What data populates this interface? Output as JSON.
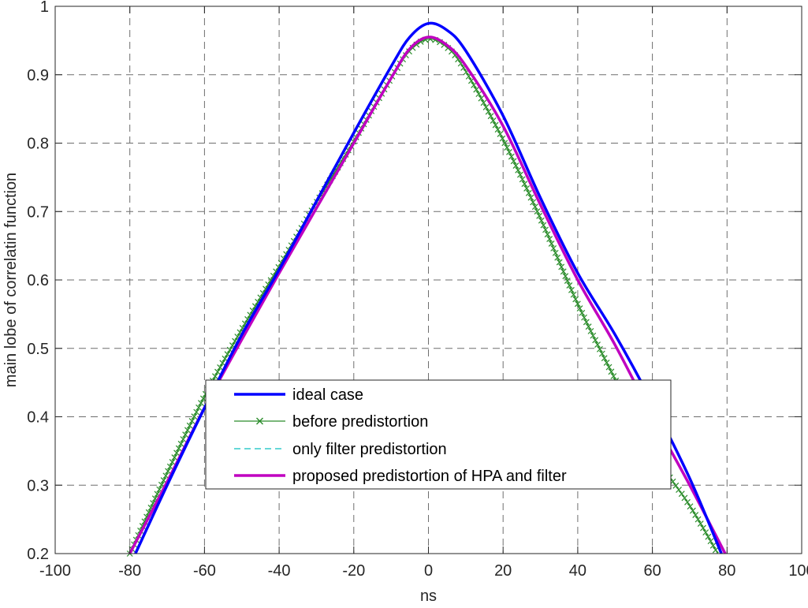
{
  "chart_data": {
    "type": "line",
    "title": "",
    "xlabel": "ns",
    "ylabel": "main lobe of correlatin function",
    "xlim": [
      -100,
      100
    ],
    "ylim": [
      0.2,
      1
    ],
    "xticks": [
      -100,
      -80,
      -60,
      -40,
      -20,
      0,
      20,
      40,
      60,
      80,
      100
    ],
    "yticks": [
      0.2,
      0.3,
      0.4,
      0.5,
      0.6,
      0.7,
      0.8,
      0.9,
      1
    ],
    "xtick_labels": [
      "-100",
      "-80",
      "-60",
      "-40",
      "-20",
      "0",
      "20",
      "40",
      "60",
      "80",
      "100"
    ],
    "ytick_labels": [
      "0.2",
      "0.3",
      "0.4",
      "0.5",
      "0.6",
      "0.7",
      "0.8",
      "0.9",
      "1"
    ],
    "grid": true,
    "grid_style": "dashed",
    "legend_position": "bottom-center",
    "series": [
      {
        "name": "ideal case",
        "color": "#0000ff",
        "style": "solid",
        "marker": "none",
        "x": [
          -78.5,
          -70,
          -60,
          -50,
          -40,
          -30,
          -20,
          -10,
          -5,
          0,
          5,
          10,
          20,
          30,
          40,
          50,
          60,
          70,
          78.5
        ],
        "y": [
          0.2,
          0.3,
          0.413,
          0.52,
          0.615,
          0.715,
          0.815,
          0.912,
          0.955,
          0.975,
          0.965,
          0.935,
          0.84,
          0.72,
          0.61,
          0.52,
          0.42,
          0.31,
          0.2
        ]
      },
      {
        "name": "before predistortion",
        "color": "#2a8c2a",
        "style": "solid",
        "marker": "x",
        "x": [
          -80,
          -70,
          -60,
          -50,
          -40,
          -30,
          -20,
          -10,
          -5,
          0,
          5,
          10,
          20,
          30,
          40,
          50,
          60,
          70,
          77.5
        ],
        "y": [
          0.2,
          0.318,
          0.43,
          0.528,
          0.62,
          0.713,
          0.803,
          0.895,
          0.935,
          0.952,
          0.94,
          0.905,
          0.805,
          0.69,
          0.565,
          0.455,
          0.35,
          0.27,
          0.2
        ]
      },
      {
        "name": "only filter predistortion",
        "color": "#33cccc",
        "style": "dashed",
        "marker": "none",
        "x": [
          -80,
          -70,
          -60,
          -50,
          -40,
          -30,
          -20,
          -10,
          -5,
          0,
          5,
          10,
          20,
          30,
          40,
          50,
          60,
          70,
          79.5
        ],
        "y": [
          0.2,
          0.305,
          0.413,
          0.513,
          0.61,
          0.705,
          0.8,
          0.895,
          0.938,
          0.955,
          0.943,
          0.913,
          0.825,
          0.71,
          0.6,
          0.505,
          0.4,
          0.3,
          0.2
        ]
      },
      {
        "name": "proposed predistortion of HPA and filter",
        "color": "#c000c0",
        "style": "solid",
        "marker": "none",
        "x": [
          -80,
          -70,
          -60,
          -50,
          -40,
          -30,
          -20,
          -10,
          -5,
          0,
          5,
          10,
          20,
          30,
          40,
          50,
          60,
          70,
          79.5
        ],
        "y": [
          0.2,
          0.305,
          0.413,
          0.513,
          0.61,
          0.705,
          0.8,
          0.895,
          0.938,
          0.955,
          0.943,
          0.913,
          0.825,
          0.71,
          0.6,
          0.505,
          0.4,
          0.3,
          0.2
        ]
      }
    ]
  }
}
